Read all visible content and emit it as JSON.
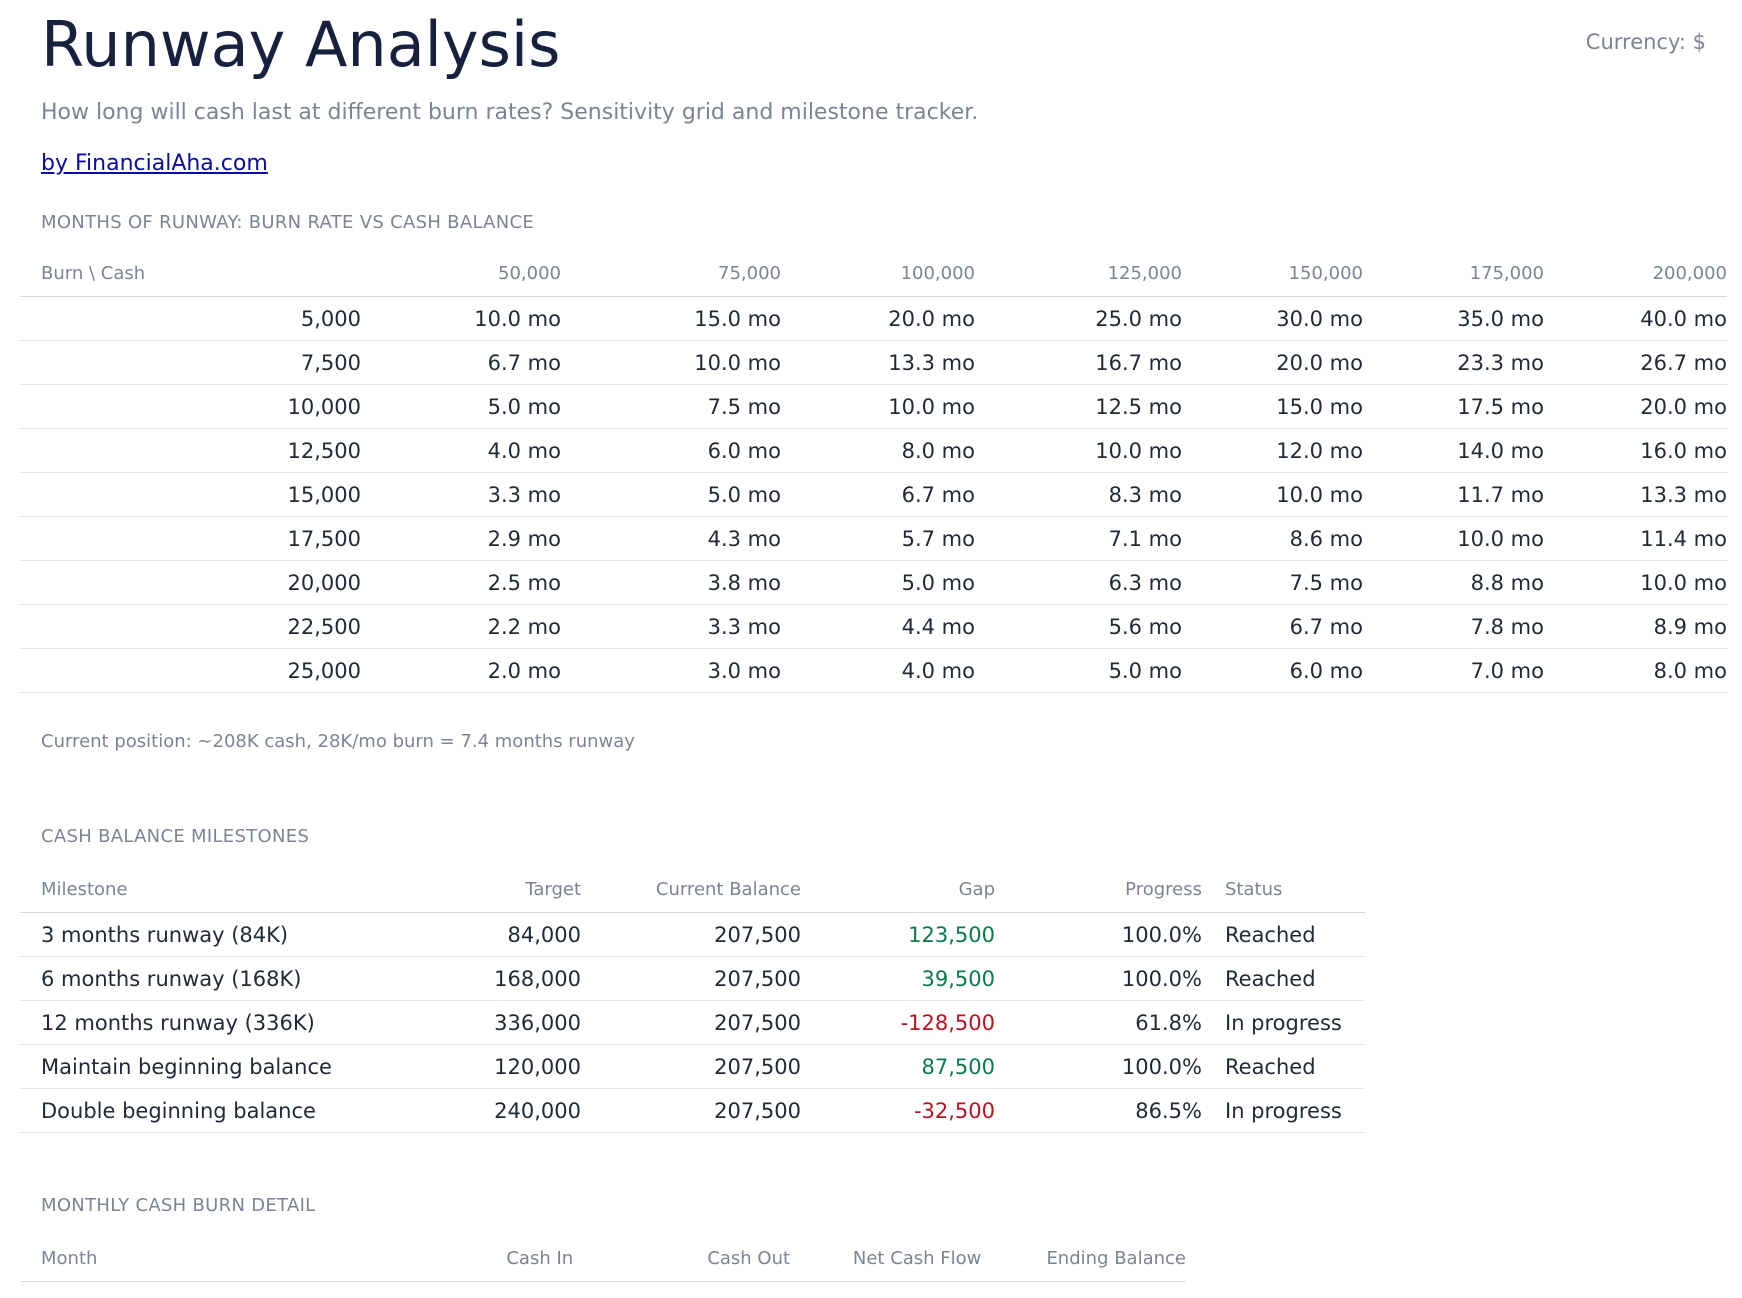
{
  "header": {
    "title": "Runway Analysis",
    "currency": "Currency: $",
    "subtitle": "How long will cash last at different burn rates? Sensitivity grid and milestone tracker.",
    "byline": "by FinancialAha.com"
  },
  "sensitivity": {
    "section_title": "MONTHS OF RUNWAY: BURN RATE VS CASH BALANCE",
    "corner_label": "Burn \\ Cash",
    "columns": [
      "50,000",
      "75,000",
      "100,000",
      "125,000",
      "150,000",
      "175,000",
      "200,000"
    ],
    "rows": [
      {
        "burn": "5,000",
        "cells": [
          "10.0 mo",
          "15.0 mo",
          "20.0 mo",
          "25.0 mo",
          "30.0 mo",
          "35.0 mo",
          "40.0 mo"
        ]
      },
      {
        "burn": "7,500",
        "cells": [
          "6.7 mo",
          "10.0 mo",
          "13.3 mo",
          "16.7 mo",
          "20.0 mo",
          "23.3 mo",
          "26.7 mo"
        ]
      },
      {
        "burn": "10,000",
        "cells": [
          "5.0 mo",
          "7.5 mo",
          "10.0 mo",
          "12.5 mo",
          "15.0 mo",
          "17.5 mo",
          "20.0 mo"
        ]
      },
      {
        "burn": "12,500",
        "cells": [
          "4.0 mo",
          "6.0 mo",
          "8.0 mo",
          "10.0 mo",
          "12.0 mo",
          "14.0 mo",
          "16.0 mo"
        ]
      },
      {
        "burn": "15,000",
        "cells": [
          "3.3 mo",
          "5.0 mo",
          "6.7 mo",
          "8.3 mo",
          "10.0 mo",
          "11.7 mo",
          "13.3 mo"
        ]
      },
      {
        "burn": "17,500",
        "cells": [
          "2.9 mo",
          "4.3 mo",
          "5.7 mo",
          "7.1 mo",
          "8.6 mo",
          "10.0 mo",
          "11.4 mo"
        ]
      },
      {
        "burn": "20,000",
        "cells": [
          "2.5 mo",
          "3.8 mo",
          "5.0 mo",
          "6.3 mo",
          "7.5 mo",
          "8.8 mo",
          "10.0 mo"
        ]
      },
      {
        "burn": "22,500",
        "cells": [
          "2.2 mo",
          "3.3 mo",
          "4.4 mo",
          "5.6 mo",
          "6.7 mo",
          "7.8 mo",
          "8.9 mo"
        ]
      },
      {
        "burn": "25,000",
        "cells": [
          "2.0 mo",
          "3.0 mo",
          "4.0 mo",
          "5.0 mo",
          "6.0 mo",
          "7.0 mo",
          "8.0 mo"
        ]
      }
    ],
    "note": "Current position: ~208K cash, 28K/mo burn = 7.4 months runway"
  },
  "milestones": {
    "section_title": "CASH BALANCE MILESTONES",
    "headers": [
      "Milestone",
      "Target",
      "Current Balance",
      "Gap",
      "Progress",
      "Status"
    ],
    "rows": [
      {
        "milestone": "3 months runway (84K)",
        "target": "84,000",
        "current": "207,500",
        "gap": "123,500",
        "gap_sign": "pos",
        "progress": "100.0%",
        "status": "Reached"
      },
      {
        "milestone": "6 months runway (168K)",
        "target": "168,000",
        "current": "207,500",
        "gap": "39,500",
        "gap_sign": "pos",
        "progress": "100.0%",
        "status": "Reached"
      },
      {
        "milestone": "12 months runway (336K)",
        "target": "336,000",
        "current": "207,500",
        "gap": "-128,500",
        "gap_sign": "neg",
        "progress": "61.8%",
        "status": "In progress"
      },
      {
        "milestone": "Maintain beginning balance",
        "target": "120,000",
        "current": "207,500",
        "gap": "87,500",
        "gap_sign": "pos",
        "progress": "100.0%",
        "status": "Reached"
      },
      {
        "milestone": "Double beginning balance",
        "target": "240,000",
        "current": "207,500",
        "gap": "-32,500",
        "gap_sign": "neg",
        "progress": "86.5%",
        "status": "In progress"
      }
    ]
  },
  "burn_detail": {
    "section_title": "MONTHLY CASH BURN DETAIL",
    "headers": [
      "Month",
      "Cash In",
      "Cash Out",
      "Net Cash Flow",
      "Ending Balance"
    ]
  },
  "colors": {
    "title": "#16213e",
    "muted": "#7b8494",
    "link": "#0b0b9e",
    "positive": "#0b7a4b",
    "negative": "#b8131e"
  }
}
